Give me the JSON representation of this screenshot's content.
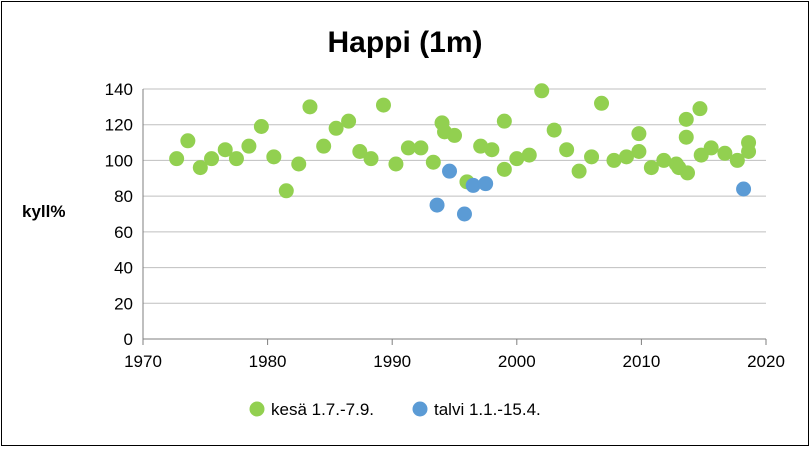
{
  "chart_data": {
    "type": "scatter",
    "title": "Happi (1m)",
    "xlabel": "",
    "ylabel": "kyll%",
    "xlim": [
      1970,
      2020
    ],
    "ylim": [
      0,
      140
    ],
    "x_ticks": [
      "1970",
      "1980",
      "1990",
      "2000",
      "2010",
      "2020"
    ],
    "y_ticks": [
      "0",
      "20",
      "40",
      "60",
      "80",
      "100",
      "120",
      "140"
    ],
    "grid": "horizontal",
    "legend_position": "bottom",
    "series": [
      {
        "name": "kesä 1.7.-7.9.",
        "color": "#92D050",
        "points": [
          [
            1972.7,
            101
          ],
          [
            1973.6,
            111
          ],
          [
            1974.6,
            96
          ],
          [
            1975.5,
            101
          ],
          [
            1976.6,
            106
          ],
          [
            1977.5,
            101
          ],
          [
            1978.5,
            108
          ],
          [
            1979.5,
            119
          ],
          [
            1980.5,
            102
          ],
          [
            1981.5,
            83
          ],
          [
            1982.5,
            98
          ],
          [
            1983.4,
            130
          ],
          [
            1984.5,
            108
          ],
          [
            1985.5,
            118
          ],
          [
            1986.5,
            122
          ],
          [
            1987.4,
            105
          ],
          [
            1988.3,
            101
          ],
          [
            1989.3,
            131
          ],
          [
            1990.3,
            98
          ],
          [
            1991.3,
            107
          ],
          [
            1992.3,
            107
          ],
          [
            1993.3,
            99
          ],
          [
            1994.0,
            121
          ],
          [
            1994.2,
            116
          ],
          [
            1995.0,
            114
          ],
          [
            1996.0,
            88
          ],
          [
            1997.1,
            108
          ],
          [
            1998.0,
            106
          ],
          [
            1999.0,
            122
          ],
          [
            1999.0,
            95
          ],
          [
            2000.0,
            101
          ],
          [
            2001.0,
            103
          ],
          [
            2002.0,
            139
          ],
          [
            2003.0,
            117
          ],
          [
            2004.0,
            106
          ],
          [
            2005.0,
            94
          ],
          [
            2006.0,
            102
          ],
          [
            2006.8,
            132
          ],
          [
            2007.8,
            100
          ],
          [
            2008.8,
            102
          ],
          [
            2009.8,
            115
          ],
          [
            2009.8,
            105
          ],
          [
            2010.8,
            96
          ],
          [
            2011.8,
            100
          ],
          [
            2012.8,
            98
          ],
          [
            2013.0,
            96
          ],
          [
            2013.6,
            123
          ],
          [
            2013.6,
            113
          ],
          [
            2013.7,
            93
          ],
          [
            2014.7,
            129
          ],
          [
            2014.8,
            103
          ],
          [
            2015.6,
            107
          ],
          [
            2016.7,
            104
          ],
          [
            2017.7,
            100
          ],
          [
            2018.6,
            110
          ],
          [
            2018.6,
            105
          ]
        ]
      },
      {
        "name": "talvi 1.1.-15.4.",
        "color": "#5B9BD5",
        "points": [
          [
            1993.6,
            75
          ],
          [
            1994.6,
            94
          ],
          [
            1995.8,
            70
          ],
          [
            1996.5,
            86
          ],
          [
            1997.5,
            87
          ],
          [
            2018.2,
            84
          ]
        ]
      }
    ]
  }
}
